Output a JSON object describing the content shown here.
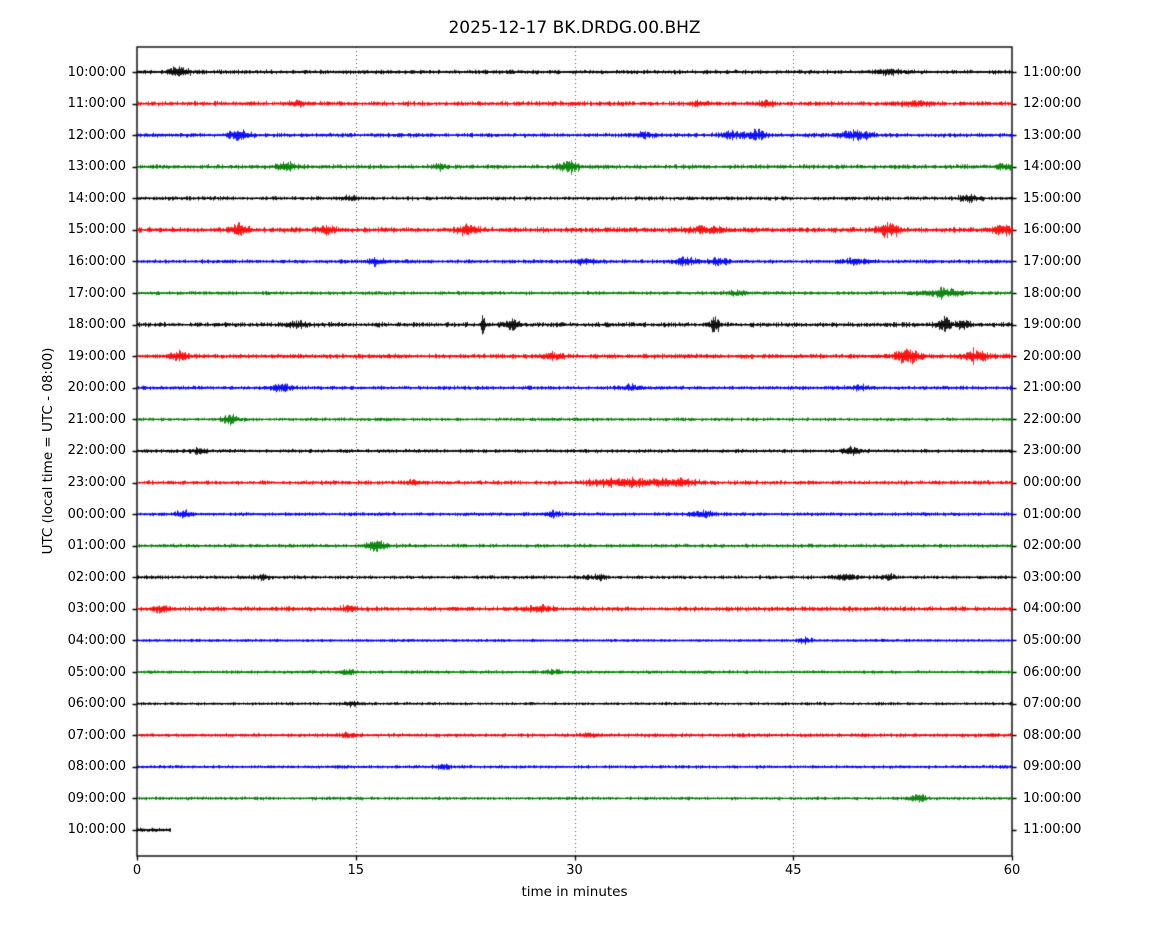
{
  "title": "2025-12-17 BK.DRDG.00.BHZ",
  "xlabel": "time in minutes",
  "ylabel": "UTC (local time = UTC - 08:00)",
  "chart_data": {
    "type": "line",
    "subtype": "helicorder_dayplot",
    "date": "2025-12-17",
    "channel_id": "BK.DRDG.00.BHZ",
    "x_range": [
      0,
      60
    ],
    "x_ticks": [
      "0",
      "15",
      "30",
      "45",
      "60"
    ],
    "x_tick_values": [
      0,
      15,
      30,
      45,
      60
    ],
    "grid_minutes": [
      15,
      30,
      45
    ],
    "grid_style": "dotted",
    "interval_minutes": 60,
    "color_cycle": [
      "#000000",
      "#ff0000",
      "#0000ff",
      "#008000"
    ],
    "rows": [
      {
        "left": "10:00:00",
        "right": "11:00:00",
        "color": "#000000",
        "noise": 1.6,
        "duration": 60,
        "bursts": [
          [
            2.9,
            1.2,
            4.0
          ],
          [
            51.5,
            1.5,
            2.0
          ]
        ]
      },
      {
        "left": "11:00:00",
        "right": "12:00:00",
        "color": "#ff0000",
        "noise": 1.8,
        "duration": 60,
        "bursts": [
          [
            11.0,
            1.0,
            2.0
          ],
          [
            38.6,
            1.0,
            2.2
          ],
          [
            43.0,
            1.0,
            2.0
          ],
          [
            53.5,
            2.0,
            2.0
          ]
        ]
      },
      {
        "left": "12:00:00",
        "right": "13:00:00",
        "color": "#0000ff",
        "noise": 1.6,
        "duration": 60,
        "bursts": [
          [
            7.0,
            1.2,
            4.0
          ],
          [
            34.8,
            1.2,
            2.5
          ],
          [
            40.9,
            1.5,
            3.5
          ],
          [
            42.5,
            1.2,
            3.5
          ],
          [
            49.3,
            2.0,
            4.5
          ]
        ]
      },
      {
        "left": "13:00:00",
        "right": "14:00:00",
        "color": "#008000",
        "noise": 1.7,
        "duration": 60,
        "bursts": [
          [
            10.2,
            1.2,
            3.0
          ],
          [
            20.8,
            1.0,
            2.0
          ],
          [
            29.6,
            1.2,
            5.0
          ],
          [
            59.5,
            1.0,
            2.5
          ]
        ]
      },
      {
        "left": "14:00:00",
        "right": "15:00:00",
        "color": "#000000",
        "noise": 1.5,
        "duration": 60,
        "bursts": [
          [
            14.6,
            1.0,
            2.0
          ],
          [
            57.0,
            1.5,
            2.0
          ]
        ]
      },
      {
        "left": "15:00:00",
        "right": "16:00:00",
        "color": "#ff0000",
        "noise": 2.0,
        "duration": 60,
        "bursts": [
          [
            7.0,
            1.0,
            5.0
          ],
          [
            12.9,
            1.0,
            3.5
          ],
          [
            22.6,
            1.2,
            4.5
          ],
          [
            39.0,
            2.5,
            2.5
          ],
          [
            51.5,
            1.3,
            6.0
          ],
          [
            59.3,
            1.2,
            3.5
          ]
        ]
      },
      {
        "left": "16:00:00",
        "right": "17:00:00",
        "color": "#0000ff",
        "noise": 1.5,
        "duration": 60,
        "bursts": [
          [
            16.3,
            1.0,
            3.0
          ],
          [
            30.8,
            1.5,
            2.0
          ],
          [
            37.6,
            1.5,
            3.5
          ],
          [
            39.9,
            1.2,
            3.0
          ],
          [
            49.2,
            1.5,
            2.5
          ]
        ]
      },
      {
        "left": "17:00:00",
        "right": "18:00:00",
        "color": "#008000",
        "noise": 1.4,
        "duration": 60,
        "bursts": [
          [
            41.0,
            1.5,
            1.8
          ],
          [
            55.3,
            2.2,
            3.5
          ]
        ]
      },
      {
        "left": "18:00:00",
        "right": "19:00:00",
        "color": "#000000",
        "noise": 1.8,
        "duration": 60,
        "bursts": [
          [
            11.0,
            1.5,
            2.0
          ],
          [
            23.7,
            0.25,
            8.0
          ],
          [
            25.6,
            1.2,
            3.0
          ],
          [
            39.6,
            0.5,
            8.0
          ],
          [
            55.3,
            0.8,
            6.0
          ],
          [
            56.6,
            1.0,
            4.0
          ]
        ]
      },
      {
        "left": "19:00:00",
        "right": "20:00:00",
        "color": "#ff0000",
        "noise": 1.8,
        "duration": 60,
        "bursts": [
          [
            2.9,
            1.2,
            3.0
          ],
          [
            28.5,
            1.5,
            2.0
          ],
          [
            52.8,
            1.5,
            6.0
          ],
          [
            57.6,
            1.3,
            5.0
          ]
        ]
      },
      {
        "left": "20:00:00",
        "right": "21:00:00",
        "color": "#0000ff",
        "noise": 1.5,
        "duration": 60,
        "bursts": [
          [
            9.9,
            1.3,
            3.5
          ],
          [
            34.0,
            1.5,
            2.0
          ],
          [
            49.5,
            1.5,
            2.0
          ]
        ]
      },
      {
        "left": "21:00:00",
        "right": "22:00:00",
        "color": "#008000",
        "noise": 1.3,
        "duration": 60,
        "bursts": [
          [
            6.4,
            1.1,
            3.5
          ]
        ]
      },
      {
        "left": "22:00:00",
        "right": "23:00:00",
        "color": "#000000",
        "noise": 1.4,
        "duration": 60,
        "bursts": [
          [
            4.2,
            0.9,
            2.5
          ],
          [
            49.0,
            1.2,
            3.0
          ]
        ]
      },
      {
        "left": "23:00:00",
        "right": "00:00:00",
        "color": "#ff0000",
        "noise": 1.6,
        "duration": 60,
        "bursts": [
          [
            19.0,
            1.0,
            2.0
          ],
          [
            34.5,
            7.0,
            2.8
          ]
        ]
      },
      {
        "left": "00:00:00",
        "right": "01:00:00",
        "color": "#0000ff",
        "noise": 1.4,
        "duration": 60,
        "bursts": [
          [
            3.2,
            1.0,
            3.0
          ],
          [
            28.5,
            1.2,
            2.0
          ],
          [
            38.6,
            1.4,
            3.0
          ]
        ]
      },
      {
        "left": "01:00:00",
        "right": "02:00:00",
        "color": "#008000",
        "noise": 1.4,
        "duration": 60,
        "bursts": [
          [
            16.3,
            1.3,
            4.0
          ]
        ]
      },
      {
        "left": "02:00:00",
        "right": "03:00:00",
        "color": "#000000",
        "noise": 1.4,
        "duration": 60,
        "bursts": [
          [
            8.5,
            1.0,
            2.0
          ],
          [
            31.5,
            1.2,
            2.2
          ],
          [
            48.5,
            1.5,
            2.0
          ],
          [
            51.5,
            1.0,
            2.0
          ]
        ]
      },
      {
        "left": "03:00:00",
        "right": "04:00:00",
        "color": "#ff0000",
        "noise": 1.8,
        "duration": 60,
        "bursts": [
          [
            1.5,
            1.0,
            2.2
          ],
          [
            14.5,
            1.0,
            2.0
          ],
          [
            27.5,
            1.5,
            2.0
          ]
        ]
      },
      {
        "left": "04:00:00",
        "right": "05:00:00",
        "color": "#0000ff",
        "noise": 1.1,
        "duration": 60,
        "bursts": [
          [
            45.8,
            1.0,
            2.5
          ]
        ]
      },
      {
        "left": "05:00:00",
        "right": "06:00:00",
        "color": "#008000",
        "noise": 1.3,
        "duration": 60,
        "bursts": [
          [
            14.5,
            1.0,
            1.8
          ],
          [
            28.5,
            1.0,
            1.8
          ]
        ]
      },
      {
        "left": "06:00:00",
        "right": "07:00:00",
        "color": "#000000",
        "noise": 1.2,
        "duration": 60,
        "bursts": [
          [
            14.7,
            1.0,
            2.0
          ]
        ]
      },
      {
        "left": "07:00:00",
        "right": "08:00:00",
        "color": "#ff0000",
        "noise": 1.5,
        "duration": 60,
        "bursts": [
          [
            14.5,
            1.0,
            1.8
          ],
          [
            31.0,
            1.0,
            1.8
          ]
        ]
      },
      {
        "left": "08:00:00",
        "right": "09:00:00",
        "color": "#0000ff",
        "noise": 1.3,
        "duration": 60,
        "bursts": [
          [
            21.0,
            1.0,
            2.0
          ]
        ]
      },
      {
        "left": "09:00:00",
        "right": "10:00:00",
        "color": "#008000",
        "noise": 1.3,
        "duration": 60,
        "bursts": [
          [
            53.5,
            1.2,
            2.5
          ]
        ]
      },
      {
        "left": "10:00:00",
        "right": "11:00:00",
        "color": "#000000",
        "noise": 1.5,
        "duration": 2.3,
        "bursts": []
      }
    ]
  }
}
